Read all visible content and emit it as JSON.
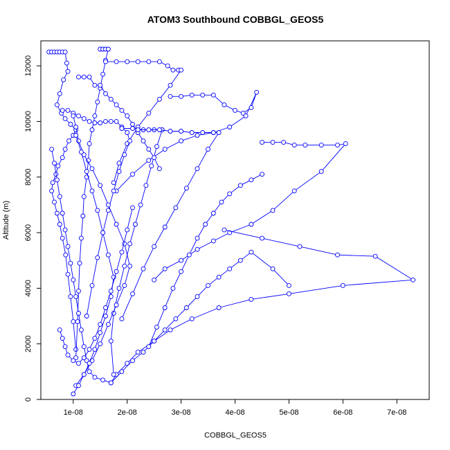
{
  "chart_data": {
    "type": "scatter",
    "title": "ATOM3 Southbound COBBGL_GEOS5",
    "xlabel": "COBBGL_GEOS5",
    "ylabel": "Altitude (m)",
    "xlim": [
      4e-09,
      7.6e-08
    ],
    "ylim": [
      0,
      12900
    ],
    "x_ticks": [
      {
        "value": 1e-08,
        "label": "1e-08"
      },
      {
        "value": 2e-08,
        "label": "2e-08"
      },
      {
        "value": 3e-08,
        "label": "3e-08"
      },
      {
        "value": 4e-08,
        "label": "4e-08"
      },
      {
        "value": 5e-08,
        "label": "5e-08"
      },
      {
        "value": 6e-08,
        "label": "6e-08"
      },
      {
        "value": 7e-08,
        "label": "7e-08"
      }
    ],
    "y_ticks": [
      {
        "value": 0,
        "label": "0"
      },
      {
        "value": 2000,
        "label": "2000"
      },
      {
        "value": 4000,
        "label": "4000"
      },
      {
        "value": 6000,
        "label": "6000"
      },
      {
        "value": 8000,
        "label": "8000"
      },
      {
        "value": 10000,
        "label": "10000"
      },
      {
        "value": 12000,
        "label": "12000"
      }
    ],
    "grid": false,
    "color": "#0000ff",
    "marker": "open-circle",
    "connected": true,
    "series": [
      {
        "x": [
          5.5e-09,
          6e-09,
          6.5e-09,
          7e-09,
          7.5e-09,
          8e-09,
          8.5e-09,
          8.8e-09,
          9e-09,
          8.2e-09,
          7.5e-09,
          7e-09,
          7.8e-09,
          8.5e-09,
          9.5e-09,
          1.05e-08,
          1e-08,
          9.2e-09,
          8.5e-09,
          8e-09,
          7.2e-09,
          6.8e-09,
          6.2e-09,
          6e-09,
          6.5e-09,
          7e-09,
          7.5e-09,
          8e-09,
          8.6e-09,
          9e-09,
          9.5e-09,
          1e-08,
          1.05e-08
        ],
        "y": [
          12500,
          12500,
          12500,
          12500,
          12500,
          12500,
          12500,
          12100,
          11800,
          11500,
          11000,
          10600,
          10300,
          10100,
          9900,
          9700,
          9500,
          9300,
          9000,
          8700,
          8400,
          8100,
          7800,
          7500,
          7100,
          6700,
          6300,
          5800,
          5200,
          4500,
          3700,
          2800,
          1800
        ]
      },
      {
        "x": [
          1.5e-08,
          1.55e-08,
          1.6e-08,
          1.65e-08,
          1.6e-08,
          1.55e-08,
          1.5e-08,
          1.45e-08,
          1.4e-08,
          1.35e-08,
          1.3e-08,
          1.28e-08,
          1.25e-08,
          1.2e-08,
          1.18e-08,
          1.15e-08,
          1.12e-08,
          1.1e-08,
          1.08e-08,
          1.05e-08
        ],
        "y": [
          12600,
          12600,
          12600,
          12600,
          12200,
          11700,
          11200,
          10700,
          10200,
          9700,
          9200,
          8600,
          8000,
          7300,
          6600,
          5800,
          4900,
          3900,
          2800,
          1500
        ]
      },
      {
        "x": [
          1.6e-08,
          1.8e-08,
          2e-08,
          2.2e-08,
          2.4e-08,
          2.6e-08,
          2.75e-08,
          2.85e-08,
          2.95e-08,
          3e-08,
          2.8e-08,
          2.6e-08,
          2.4e-08,
          2.2e-08,
          2e-08,
          1.85e-08,
          1.75e-08
        ],
        "y": [
          12150,
          12150,
          12150,
          12150,
          12150,
          12150,
          12000,
          11850,
          11850,
          11850,
          11300,
          10800,
          10300,
          9800,
          9200,
          8500,
          7800
        ]
      },
      {
        "x": [
          2.8e-08,
          3e-08,
          3.2e-08,
          3.4e-08,
          3.6e-08,
          3.8e-08,
          4e-08,
          4.15e-08,
          4.3e-08,
          4.4e-08,
          4.2e-08,
          3.9e-08,
          3.6e-08,
          3.3e-08,
          3e-08,
          2.7e-08,
          2.4e-08,
          2.1e-08,
          1.8e-08
        ],
        "y": [
          10900,
          10900,
          10950,
          10950,
          10950,
          10600,
          10400,
          10300,
          10500,
          11050,
          10200,
          9800,
          9600,
          9500,
          9300,
          9000,
          8600,
          8100,
          7500
        ]
      },
      {
        "x": [
          4.5e-08,
          4.7e-08,
          4.9e-08,
          5.1e-08,
          5.3e-08,
          5.6e-08,
          5.9e-08,
          6.05e-08,
          5.6e-08,
          5.1e-08,
          4.7e-08,
          4.3e-08,
          3.9e-08,
          3.6e-08,
          3.3e-08,
          3e-08,
          2.7e-08,
          2.5e-08
        ],
        "y": [
          9250,
          9250,
          9250,
          9150,
          9150,
          9150,
          9150,
          9200,
          8200,
          7500,
          6800,
          6300,
          6000,
          5700,
          5400,
          5000,
          4700,
          4300
        ]
      },
      {
        "x": [
          3.8e-08,
          4.5e-08,
          5.2e-08,
          5.9e-08,
          6.6e-08,
          7.3e-08,
          6e-08,
          5e-08,
          4.3e-08,
          3.7e-08,
          3.2e-08,
          2.8e-08,
          2.5e-08,
          2.2e-08,
          2e-08,
          1.8e-08,
          1.7e-08
        ],
        "y": [
          6100,
          5800,
          5500,
          5200,
          5150,
          4300,
          4100,
          3800,
          3600,
          3300,
          2900,
          2500,
          2100,
          1700,
          1300,
          900,
          600
        ]
      },
      {
        "x": [
          1.7e-08,
          1.9e-08,
          2.1e-08,
          2.3e-08,
          2.5e-08,
          2.7e-08,
          2.9e-08,
          3.1e-08,
          3.3e-08,
          3.5e-08,
          3.7e-08,
          3.9e-08,
          4.1e-08,
          4.3e-08,
          4.7e-08,
          5e-08
        ],
        "y": [
          600,
          1000,
          1400,
          1700,
          2100,
          2500,
          2900,
          3300,
          3700,
          4100,
          4400,
          4700,
          5000,
          5300,
          4700,
          4100
        ]
      },
      {
        "x": [
          8e-09,
          9e-09,
          1e-08,
          1.1e-08,
          1.2e-08,
          1.3e-08,
          1.4e-08,
          1.5e-08,
          1.6e-08,
          1.7e-08,
          1.8e-08,
          1.9e-08,
          2e-08,
          2.05e-08,
          1.95e-08,
          1.85e-08,
          1.75e-08,
          1.65e-08,
          1.55e-08,
          1.45e-08,
          1.35e-08,
          1.25e-08
        ],
        "y": [
          10400,
          10400,
          10300,
          10200,
          10100,
          10000,
          9950,
          9950,
          10000,
          10000,
          10000,
          9800,
          9600,
          9300,
          8800,
          8200,
          7500,
          6800,
          6000,
          5100,
          4100,
          3000
        ]
      },
      {
        "x": [
          1.9e-08,
          2.1e-08,
          2.3e-08,
          2.5e-08,
          2.65e-08,
          2.55e-08,
          2.45e-08,
          2.35e-08,
          2.25e-08,
          2.15e-08,
          2.05e-08,
          1.95e-08,
          1.85e-08,
          1.75e-08,
          1.7e-08,
          1.75e-08
        ],
        "y": [
          9750,
          9750,
          9700,
          9700,
          9700,
          9100,
          8400,
          7700,
          7000,
          6300,
          5600,
          4800,
          4000,
          3100,
          2100,
          900
        ]
      },
      {
        "x": [
          1.05e-08,
          1.2e-08,
          1.35e-08,
          1.5e-08,
          1.65e-08,
          1.8e-08,
          1.95e-08,
          2.05e-08,
          1.95e-08,
          1.8e-08,
          1.65e-08,
          1.5e-08,
          1.35e-08,
          1.2e-08,
          1.1e-08,
          1.05e-08,
          1e-08
        ],
        "y": [
          500,
          900,
          1400,
          2000,
          2700,
          3400,
          4100,
          4800,
          5600,
          6300,
          7000,
          7700,
          8300,
          8800,
          9300,
          9800,
          10200
        ]
      },
      {
        "x": [
          6e-09,
          6.5e-09,
          7e-09,
          7.5e-09,
          8e-09,
          8.5e-09,
          9e-09,
          9.5e-09,
          1e-08,
          1.05e-08,
          1.1e-08,
          1.15e-08,
          1.2e-08,
          1.25e-08,
          1.3e-08,
          1.4e-08,
          1.55e-08,
          1.7e-08
        ],
        "y": [
          9000,
          8500,
          7900,
          7300,
          6700,
          6100,
          5500,
          4900,
          4300,
          3700,
          3100,
          2500,
          1900,
          1400,
          1000,
          800,
          700,
          600
        ]
      },
      {
        "x": [
          1e-08,
          1.1e-08,
          1.2e-08,
          1.3e-08,
          1.4e-08,
          1.5e-08,
          1.6e-08,
          1.7e-08,
          1.75e-08,
          1.65e-08,
          1.55e-08,
          1.45e-08,
          1.35e-08,
          1.25e-08,
          1.15e-08,
          1.05e-08
        ],
        "y": [
          200,
          500,
          900,
          1300,
          1800,
          2400,
          3000,
          3700,
          4400,
          5200,
          6000,
          6800,
          7500,
          8200,
          8900,
          9500
        ]
      },
      {
        "x": [
          1.1e-08,
          1.2e-08,
          1.3e-08,
          1.4e-08,
          1.5e-08,
          1.6e-08,
          1.7e-08,
          1.8e-08,
          1.9e-08,
          2e-08,
          2.1e-08,
          2.2e-08,
          2.3e-08,
          2.4e-08,
          2.5e-08,
          2.6e-08
        ],
        "y": [
          11600,
          11600,
          11600,
          11300,
          11300,
          11000,
          10800,
          10600,
          10400,
          10200,
          9900,
          9600,
          9300,
          9000,
          8700,
          8300
        ]
      },
      {
        "x": [
          2.2e-08,
          2.4e-08,
          2.6e-08,
          2.8e-08,
          3e-08,
          3.2e-08,
          3.4e-08,
          3.6e-08,
          3.7e-08,
          3.5e-08,
          3.3e-08,
          3.1e-08,
          2.9e-08,
          2.7e-08,
          2.5e-08,
          2.3e-08,
          2.1e-08,
          1.9e-08
        ],
        "y": [
          9700,
          9700,
          9700,
          9650,
          9650,
          9600,
          9600,
          9600,
          9600,
          9000,
          8300,
          7600,
          6900,
          6200,
          5500,
          4700,
          3800,
          2900
        ]
      },
      {
        "x": [
          7.5e-09,
          8e-09,
          8.5e-09,
          9e-09,
          1e-08,
          1.1e-08,
          1.2e-08,
          1.3e-08,
          1.4e-08,
          1.5e-08,
          1.6e-08,
          1.7e-08,
          1.8e-08,
          1.9e-08,
          2e-08,
          2.1e-08
        ],
        "y": [
          2500,
          2200,
          1900,
          1600,
          1400,
          1300,
          1500,
          1800,
          2200,
          2700,
          3300,
          3900,
          4600,
          5300,
          6100,
          6900
        ]
      },
      {
        "x": [
          2.4e-08,
          2.55e-08,
          2.7e-08,
          2.85e-08,
          3e-08,
          3.15e-08,
          3.3e-08,
          3.45e-08,
          3.6e-08,
          3.75e-08,
          3.9e-08,
          4.1e-08,
          4.3e-08,
          4.5e-08
        ],
        "y": [
          1900,
          2600,
          3300,
          4000,
          4600,
          5200,
          5800,
          6300,
          6700,
          7100,
          7400,
          7700,
          7900,
          8100
        ]
      }
    ]
  }
}
